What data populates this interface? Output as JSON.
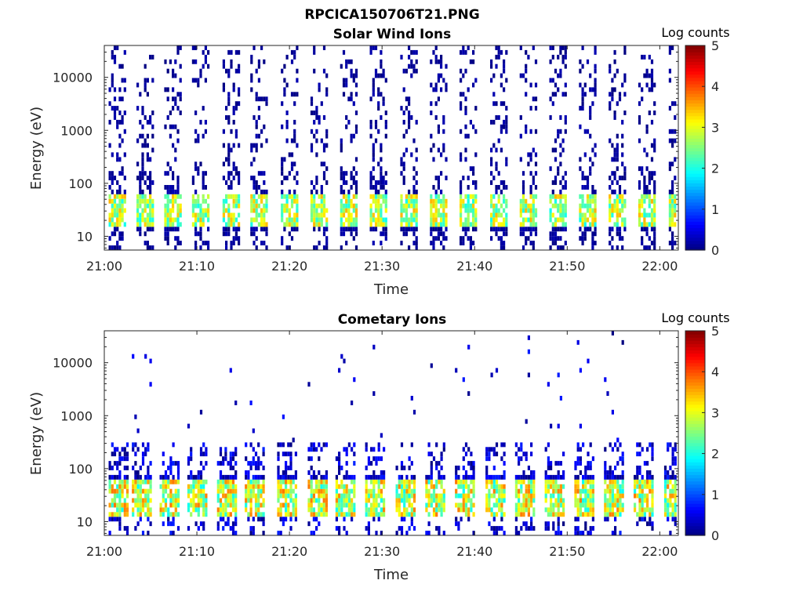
{
  "figure_title": "RPCICA150706T21.PNG",
  "chart_data": [
    {
      "type": "heatmap",
      "title": "Solar Wind Ions",
      "xlabel": "Time",
      "ylabel": "Energy (eV)",
      "x_ticks": [
        "21:00",
        "21:10",
        "21:20",
        "21:30",
        "21:40",
        "21:50",
        "22:00"
      ],
      "y_ticks": [
        "10",
        "100",
        "1000",
        "10000"
      ],
      "y_scale": "log",
      "ylim": [
        5.5,
        40000
      ],
      "xlim": [
        "21:00",
        "22:02"
      ],
      "colorbar": {
        "label": "Log counts",
        "range": [
          0,
          5
        ],
        "ticks": [
          "0",
          "1",
          "2",
          "3",
          "4",
          "5"
        ]
      },
      "scan_start_minutes": [
        0.3,
        3.3,
        6.3,
        9.3,
        12.6,
        15.6,
        18.9,
        22.1,
        25.3,
        28.5,
        31.8,
        35.0,
        38.2,
        41.5,
        44.7,
        47.9,
        51.1,
        54.3,
        57.5,
        60.8
      ],
      "peak_energy_eV": 30,
      "peak_log_counts": 3.5
    },
    {
      "type": "heatmap",
      "title": "Cometary Ions",
      "xlabel": "Time",
      "ylabel": "Energy (eV)",
      "x_ticks": [
        "21:00",
        "21:10",
        "21:20",
        "21:30",
        "21:40",
        "21:50",
        "22:00"
      ],
      "y_ticks": [
        "10",
        "100",
        "1000",
        "10000"
      ],
      "y_scale": "log",
      "ylim": [
        5.5,
        40000
      ],
      "xlim": [
        "21:00",
        "22:02"
      ],
      "colorbar": {
        "label": "Log counts",
        "range": [
          0,
          5
        ],
        "ticks": [
          "0",
          "1",
          "2",
          "3",
          "4",
          "5"
        ]
      },
      "scan_start_minutes": [
        0.3,
        2.8,
        5.8,
        8.8,
        12.0,
        15.0,
        18.5,
        21.8,
        24.8,
        28.0,
        31.3,
        34.5,
        37.7,
        41.0,
        44.2,
        47.4,
        50.6,
        53.8,
        57.0,
        60.3
      ],
      "peak_energy_eV": 30,
      "peak_log_counts": 3.8
    }
  ]
}
